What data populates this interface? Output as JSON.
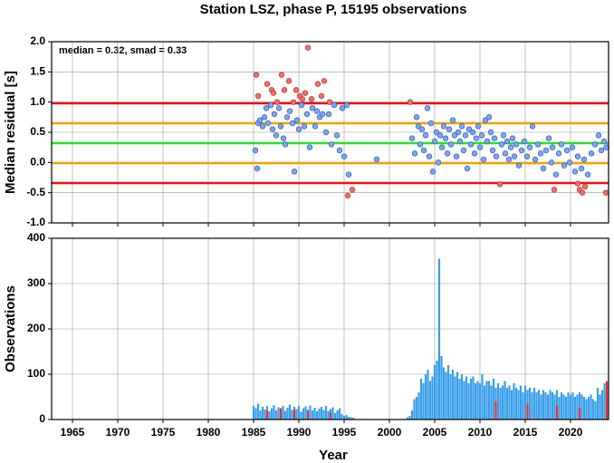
{
  "chart_data": [
    {
      "type": "scatter",
      "title": "Station LSZ, phase P, 15195 observations",
      "annotation": "median = 0.32, smad = 0.33",
      "ylabel": "Median residual [s]",
      "xlim": [
        1962.7,
        2024.2
      ],
      "xticks": [
        1965,
        1970,
        1975,
        1980,
        1985,
        1990,
        1995,
        2000,
        2005,
        2010,
        2015,
        2020
      ],
      "ylim": [
        -1,
        2
      ],
      "yticks": [
        {
          "value": -1,
          "label": "-1.0"
        },
        -0.5,
        {
          "value": 0,
          "label": "0.0"
        },
        0.5,
        {
          "value": 1,
          "label": "1.0"
        },
        1.5,
        {
          "value": 2,
          "label": "2.0"
        }
      ],
      "grid": true,
      "hlines": [
        {
          "value": 0.98,
          "color": "#ee1111"
        },
        {
          "value": 0.65,
          "color": "#f5a000"
        },
        {
          "value": 0.32,
          "color": "#22e622"
        },
        {
          "value": -0.01,
          "color": "#f5a000"
        },
        {
          "value": -0.34,
          "color": "#ee1111"
        }
      ],
      "series": [
        {
          "color": "#7aa6f2",
          "edge": "#2b4fa8",
          "x": [
            1985.2,
            1985.4,
            1985.5,
            1985.7,
            1986.0,
            1986.2,
            1986.4,
            1986.6,
            1986.9,
            1987.1,
            1987.3,
            1987.5,
            1987.8,
            1988.0,
            1988.3,
            1988.5,
            1988.7,
            1989.0,
            1989.3,
            1989.5,
            1989.8,
            1990.0,
            1990.3,
            1990.6,
            1990.9,
            1991.2,
            1991.5,
            1991.8,
            1992.0,
            1992.3,
            1992.6,
            1993.0,
            1993.3,
            1993.6,
            1993.9,
            1994.2,
            1994.5,
            1994.8,
            1995.0,
            1995.3,
            1995.5,
            1998.6,
            2002.5,
            2002.8,
            2003.0,
            2003.2,
            2003.4,
            2003.6,
            2003.8,
            2004.0,
            2004.2,
            2004.4,
            2004.6,
            2004.8,
            2005.0,
            2005.2,
            2005.4,
            2005.6,
            2005.8,
            2006.0,
            2006.2,
            2006.4,
            2006.6,
            2006.8,
            2007.0,
            2007.2,
            2007.4,
            2007.6,
            2007.8,
            2008.0,
            2008.2,
            2008.4,
            2008.6,
            2008.8,
            2009.0,
            2009.2,
            2009.4,
            2009.6,
            2009.8,
            2010.0,
            2010.2,
            2010.4,
            2010.6,
            2010.8,
            2011.0,
            2011.2,
            2011.4,
            2011.6,
            2011.8,
            2012.4,
            2012.6,
            2012.8,
            2013.0,
            2013.2,
            2013.4,
            2013.6,
            2013.8,
            2014.0,
            2014.3,
            2014.6,
            2014.9,
            2015.2,
            2015.5,
            2015.8,
            2016.1,
            2016.4,
            2016.7,
            2017.0,
            2017.3,
            2017.6,
            2017.9,
            2018.0,
            2018.4,
            2018.7,
            2019.0,
            2019.3,
            2019.6,
            2019.9,
            2020.2,
            2020.5,
            2020.8,
            2021.2,
            2021.5,
            2021.9,
            2022.3,
            2022.7,
            2023.1,
            2023.4,
            2023.7,
            2023.95
          ],
          "values": [
            0.2,
            -0.1,
            0.65,
            0.7,
            0.6,
            0.75,
            0.9,
            0.65,
            0.95,
            0.55,
            0.8,
            0.45,
            0.9,
            0.6,
            0.4,
            0.3,
            0.75,
            0.85,
            0.65,
            -0.15,
            0.7,
            0.55,
            0.95,
            0.6,
            0.8,
            0.25,
            0.9,
            0.6,
            0.85,
            0.75,
            0.8,
            0.5,
            0.8,
            0.3,
            0.95,
            0.45,
            0.2,
            0.9,
            0.1,
            0.95,
            -0.2,
            0.05,
            0.4,
            0.15,
            0.75,
            0.6,
            0.3,
            0.55,
            0.2,
            0.45,
            0.9,
            0.1,
            0.65,
            -0.15,
            0.35,
            0.5,
            0.0,
            0.45,
            0.25,
            0.6,
            0.4,
            0.15,
            0.55,
            0.3,
            0.7,
            0.45,
            0.1,
            0.5,
            0.35,
            0.6,
            0.2,
            0.45,
            -0.1,
            0.55,
            0.3,
            0.5,
            0.15,
            0.4,
            0.6,
            0.25,
            0.45,
            0.05,
            0.7,
            0.35,
            0.75,
            0.5,
            0.2,
            0.4,
            0.1,
            0.3,
            0.45,
            0.15,
            0.35,
            0.05,
            0.25,
            0.4,
            0.1,
            0.3,
            -0.05,
            0.2,
            0.35,
            0.1,
            0.25,
            0.6,
            0.05,
            0.3,
            0.15,
            -0.1,
            0.2,
            0.4,
            0.0,
            0.25,
            -0.2,
            0.15,
            0.3,
            -0.05,
            0.2,
            0.0,
            0.25,
            -0.15,
            0.1,
            -0.1,
            0.05,
            -0.2,
            0.15,
            0.3,
            0.45,
            0.2,
            0.35,
            0.25
          ]
        },
        {
          "color": "#f26a6a",
          "edge": "#b03030",
          "x": [
            1985.3,
            1985.5,
            1986.5,
            1987.0,
            1987.2,
            1987.6,
            1988.1,
            1988.4,
            1988.9,
            1989.4,
            1989.7,
            1990.1,
            1990.4,
            1990.7,
            1991.0,
            1991.4,
            1992.1,
            1992.5,
            1992.8,
            1993.4,
            1995.4,
            1995.9,
            2002.3,
            2012.2,
            2018.2,
            2020.8,
            2021.0,
            2021.3,
            2021.6,
            2023.9
          ],
          "values": [
            1.45,
            1.1,
            1.3,
            1.2,
            1.15,
            1.0,
            1.45,
            1.2,
            1.35,
            1.0,
            1.2,
            1.1,
            1.05,
            1.15,
            1.9,
            1.05,
            1.3,
            1.1,
            1.35,
            1.0,
            -0.55,
            -0.45,
            1.0,
            -0.36,
            -0.45,
            -0.35,
            -0.45,
            -0.5,
            -0.4,
            -0.5
          ]
        }
      ]
    },
    {
      "type": "bar",
      "ylabel": "Observations",
      "xlabel": "Year",
      "xlim": [
        1962.7,
        2024.2
      ],
      "xticks": [
        1965,
        1970,
        1975,
        1980,
        1985,
        1990,
        1995,
        2000,
        2005,
        2010,
        2015,
        2020
      ],
      "ylim": [
        0,
        400
      ],
      "yticks": [
        0,
        100,
        200,
        300,
        400
      ],
      "grid": true,
      "series": [
        {
          "color": "#3a9ee8",
          "x": [
            1985,
            1985.25,
            1985.5,
            1985.75,
            1986,
            1986.25,
            1986.5,
            1986.75,
            1987,
            1987.25,
            1987.5,
            1987.75,
            1988,
            1988.25,
            1988.5,
            1988.75,
            1989,
            1989.25,
            1989.5,
            1989.75,
            1990,
            1990.25,
            1990.5,
            1990.75,
            1991,
            1991.25,
            1991.5,
            1991.75,
            1992,
            1992.25,
            1992.5,
            1992.75,
            1993,
            1993.25,
            1993.5,
            1993.75,
            1994,
            1994.25,
            1994.5,
            1994.75,
            1995,
            1995.25,
            1995.5,
            1995.75,
            1996,
            2002,
            2002.25,
            2002.5,
            2002.75,
            2003,
            2003.25,
            2003.5,
            2003.75,
            2004,
            2004.25,
            2004.5,
            2004.75,
            2005,
            2005.25,
            2005.5,
            2005.75,
            2006,
            2006.25,
            2006.5,
            2006.75,
            2007,
            2007.25,
            2007.5,
            2007.75,
            2008,
            2008.25,
            2008.5,
            2008.75,
            2009,
            2009.25,
            2009.5,
            2009.75,
            2010,
            2010.25,
            2010.5,
            2010.75,
            2011,
            2011.25,
            2011.5,
            2011.75,
            2012,
            2012.25,
            2012.5,
            2012.75,
            2013,
            2013.25,
            2013.5,
            2013.75,
            2014,
            2014.25,
            2014.5,
            2014.75,
            2015,
            2015.25,
            2015.5,
            2015.75,
            2016,
            2016.25,
            2016.5,
            2016.75,
            2017,
            2017.25,
            2017.5,
            2017.75,
            2018,
            2018.25,
            2018.5,
            2018.75,
            2019,
            2019.25,
            2019.5,
            2019.75,
            2020,
            2020.25,
            2020.5,
            2020.75,
            2021,
            2021.25,
            2021.5,
            2021.75,
            2022,
            2022.25,
            2022.5,
            2022.75,
            2023,
            2023.25,
            2023.5,
            2023.75,
            2024
          ],
          "values": [
            30,
            25,
            35,
            20,
            28,
            22,
            30,
            18,
            25,
            32,
            20,
            27,
            24,
            30,
            19,
            26,
            33,
            21,
            28,
            23,
            30,
            17,
            25,
            29,
            22,
            31,
            20,
            26,
            18,
            24,
            28,
            21,
            30,
            19,
            23,
            27,
            14,
            20,
            25,
            12,
            8,
            10,
            6,
            5,
            4,
            5,
            8,
            20,
            45,
            50,
            60,
            90,
            80,
            100,
            110,
            85,
            95,
            120,
            130,
            355,
            140,
            115,
            105,
            120,
            100,
            110,
            95,
            105,
            90,
            100,
            85,
            95,
            80,
            90,
            95,
            80,
            85,
            80,
            100,
            75,
            85,
            85,
            75,
            90,
            70,
            80,
            70,
            75,
            85,
            70,
            75,
            65,
            80,
            70,
            65,
            75,
            60,
            75,
            65,
            70,
            60,
            70,
            60,
            65,
            55,
            65,
            60,
            55,
            65,
            60,
            55,
            65,
            50,
            60,
            55,
            50,
            60,
            55,
            60,
            50,
            55,
            60,
            55,
            50,
            45,
            50,
            55,
            45,
            40,
            70,
            55,
            65,
            80,
            85
          ]
        },
        {
          "color": "#e83030",
          "x": [
            1986.5,
            1988,
            1989.5,
            1991,
            1993.5,
            2011.75,
            2015.25,
            2018.5,
            2021,
            2024
          ],
          "values": [
            20,
            25,
            22,
            18,
            15,
            40,
            35,
            30,
            25,
            85
          ]
        }
      ]
    }
  ]
}
